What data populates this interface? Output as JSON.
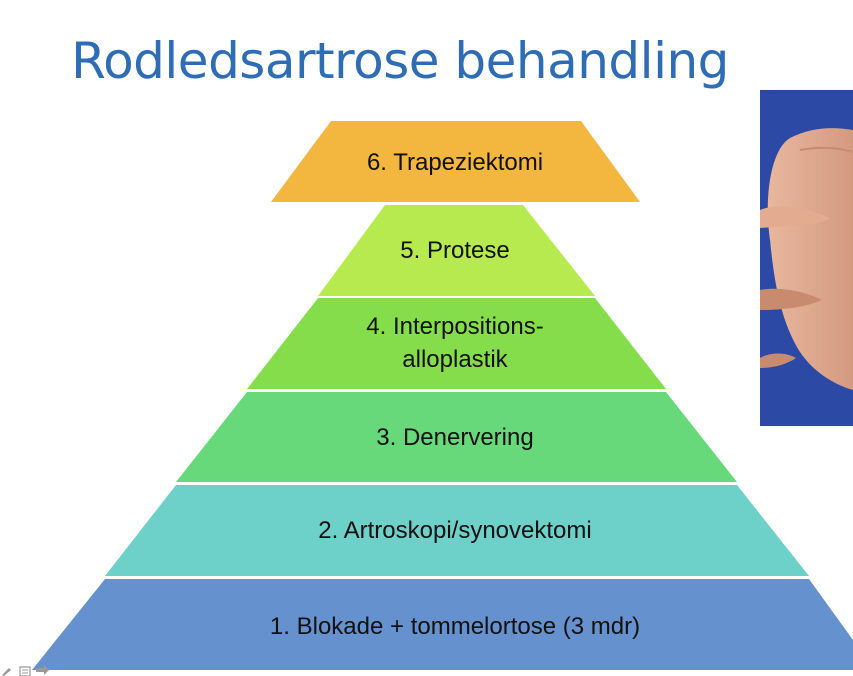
{
  "title": "Rodledsartrose behandling",
  "colors": {
    "title": "#2e6db5",
    "photo_background": "#2c4aa5",
    "level_6": "#f3b63f",
    "level_5": "#b6ea4f",
    "level_4": "#86dd4c",
    "level_3": "#67d97a",
    "level_2": "#6dd0c9",
    "level_1": "#6592cf"
  },
  "levels": [
    {
      "number": "6",
      "lines": [
        "6. Trapeziektomi"
      ]
    },
    {
      "number": "5",
      "lines": [
        "5. Protese"
      ]
    },
    {
      "number": "4",
      "lines": [
        "4. Interpositions-",
        "alloplastik"
      ]
    },
    {
      "number": "3",
      "lines": [
        "3. Denervering"
      ]
    },
    {
      "number": "2",
      "lines": [
        "2. Artroskopi/synovektomi"
      ]
    },
    {
      "number": "1",
      "lines": [
        "1. Blokade + tommelortose (3 mdr)"
      ]
    }
  ]
}
